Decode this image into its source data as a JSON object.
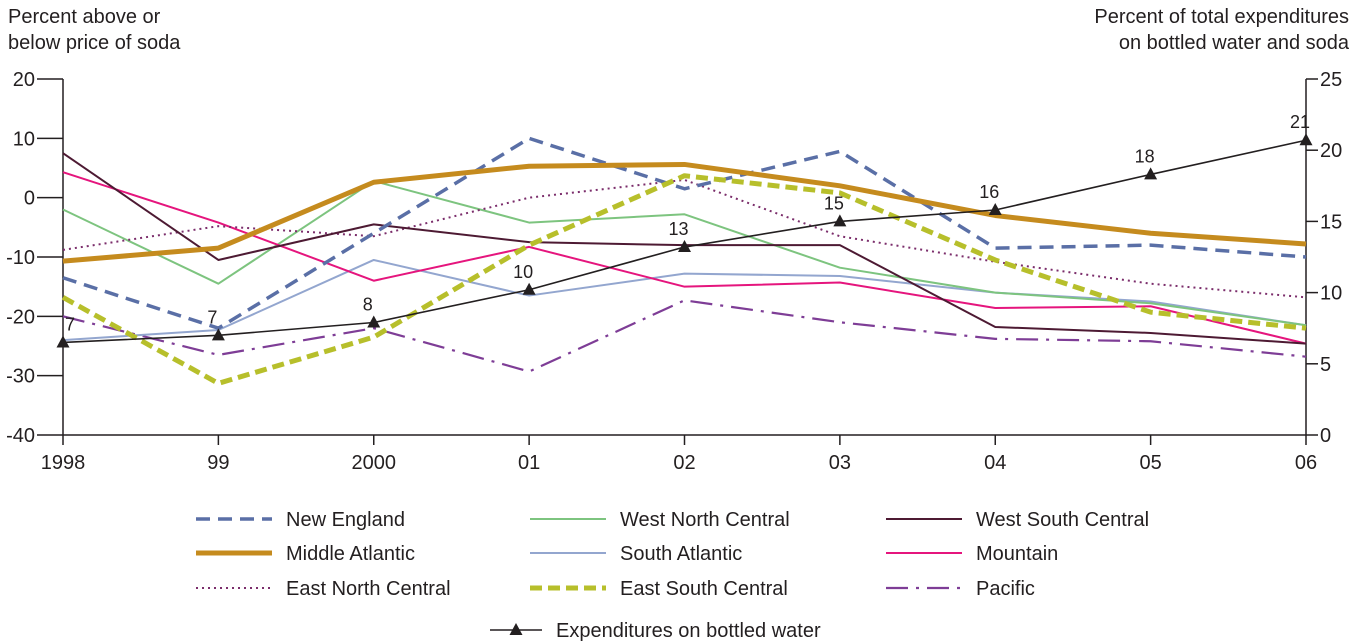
{
  "chart_data": {
    "type": "line",
    "left_axis_title": "Percent above or\nbelow price of soda",
    "right_axis_title": "Percent of total expenditures\non bottled water and soda",
    "categories": [
      "1998",
      "99",
      "2000",
      "01",
      "02",
      "03",
      "04",
      "05",
      "06"
    ],
    "left_ylim": [
      -40,
      20
    ],
    "left_yticks": [
      "20",
      "10",
      "0",
      "-10",
      "-20",
      "-30",
      "-40"
    ],
    "right_ylim": [
      0,
      25
    ],
    "right_yticks": [
      "25",
      "20",
      "15",
      "10",
      "5",
      "0"
    ],
    "grid": false,
    "series": [
      {
        "name": "New England",
        "axis": "left",
        "color": "#5a6fa6",
        "style": "dashed",
        "values": [
          -13.5,
          -22,
          -6,
          10,
          1.5,
          7.8,
          -8.5,
          -8,
          -10
        ]
      },
      {
        "name": "Middle Atlantic",
        "axis": "left",
        "color": "#c58b1e",
        "style": "thick",
        "values": [
          -10.7,
          -8.5,
          2.6,
          5.3,
          5.6,
          2,
          -3,
          -6,
          -7.8
        ]
      },
      {
        "name": "East North Central",
        "axis": "left",
        "color": "#7b2d6b",
        "style": "dotted",
        "values": [
          -8.8,
          -4.8,
          -6.5,
          0,
          3,
          -6.5,
          -10.8,
          -14.5,
          -16.8
        ]
      },
      {
        "name": "West North Central",
        "axis": "left",
        "color": "#7dc47f",
        "style": "solid",
        "values": [
          -2,
          -14.5,
          2.8,
          -4.2,
          -2.8,
          -11.8,
          -16,
          -17.8,
          -21.5
        ]
      },
      {
        "name": "South Atlantic",
        "axis": "left",
        "color": "#93a6cf",
        "style": "solid",
        "values": [
          -24,
          -22.3,
          -10.5,
          -16.5,
          -12.8,
          -13.2,
          -16,
          -17.5,
          -21.5
        ]
      },
      {
        "name": "East South Central",
        "axis": "left",
        "color": "#b7bf2b",
        "style": "thick-dashed",
        "values": [
          -16.8,
          -31.3,
          -23.5,
          -8,
          3.7,
          0.8,
          -10.5,
          -19.3,
          -22
        ]
      },
      {
        "name": "West South Central",
        "axis": "left",
        "color": "#4d1a33",
        "style": "solid",
        "values": [
          7.5,
          -10.5,
          -4.5,
          -7.5,
          -8,
          -8,
          -21.8,
          -22.8,
          -24.6
        ]
      },
      {
        "name": "Mountain",
        "axis": "left",
        "color": "#e5157d",
        "style": "solid",
        "values": [
          4.3,
          -4.2,
          -14,
          -8.3,
          -15,
          -14.3,
          -18.6,
          -18.3,
          -24.6
        ]
      },
      {
        "name": "Pacific",
        "axis": "left",
        "color": "#7e3d96",
        "style": "dash-dot",
        "values": [
          -20,
          -26.5,
          -22,
          -29.3,
          -17.3,
          -21,
          -23.8,
          -24.2,
          -26.8
        ]
      },
      {
        "name": "Expenditures on bottled water",
        "axis": "right",
        "color": "#231f20",
        "style": "triangle-markers",
        "values": [
          6.5,
          7,
          7.9,
          10.2,
          13.2,
          15,
          15.8,
          18.3,
          20.7
        ]
      }
    ],
    "data_labels": [
      "7",
      "7",
      "8",
      "10",
      "13",
      "15",
      "16",
      "18",
      "21"
    ],
    "legend_position": "bottom"
  }
}
